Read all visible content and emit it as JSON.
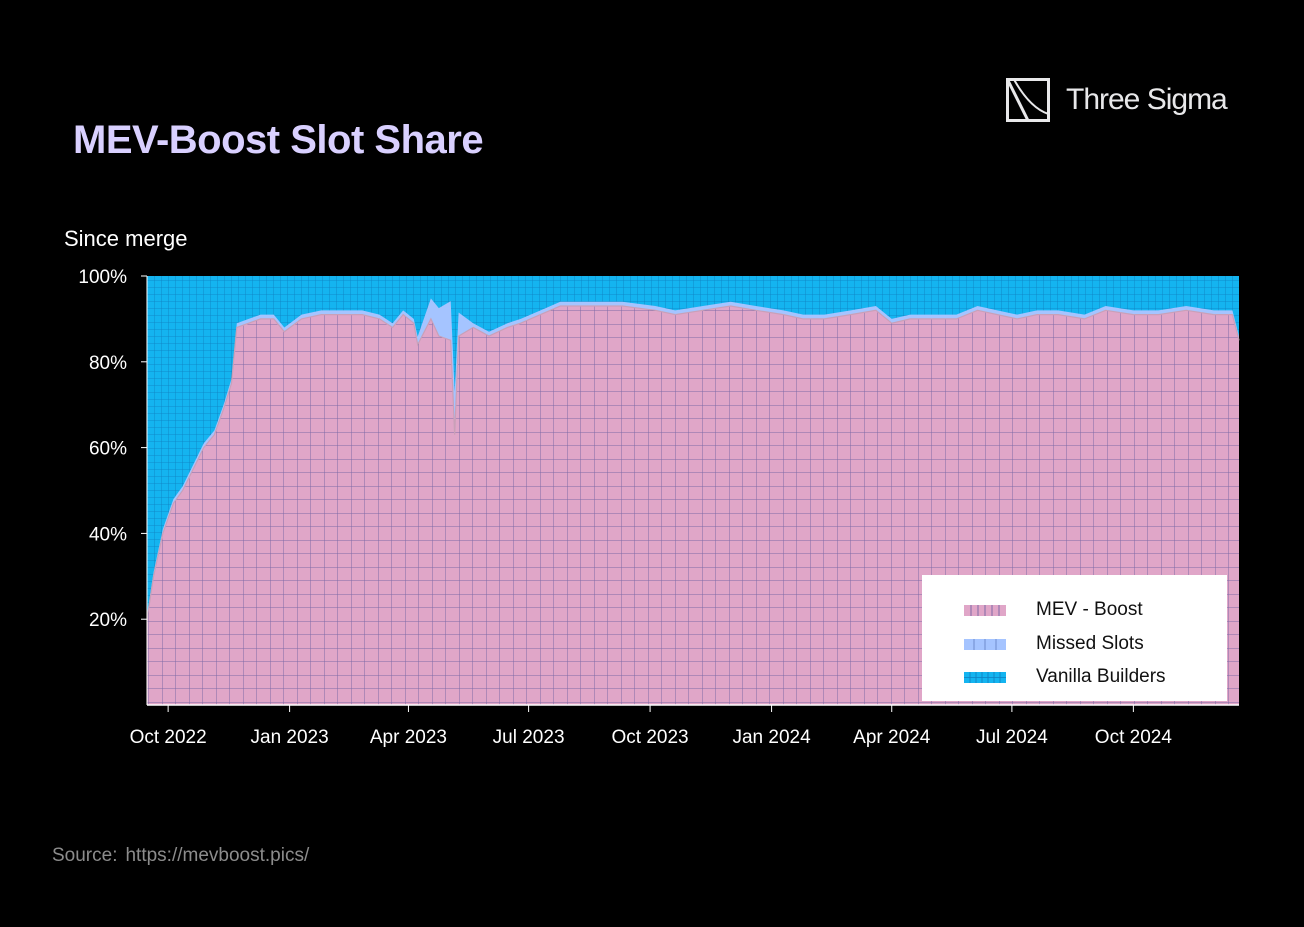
{
  "header": {
    "title": "MEV-Boost Slot Share",
    "brand": "Three Sigma",
    "subtitle": "Since merge"
  },
  "source": {
    "label": "Source:",
    "url": "https://mevboost.pics/"
  },
  "colors": {
    "mev_boost": "#e0a6c8",
    "mev_grid": "#7e6aa6",
    "missed_slots": "#a5c4ff",
    "vanilla_builders": "#14b4f0",
    "vanilla_grid": "#0f7fc0",
    "title": "#d9d0ff",
    "background": "#000000"
  },
  "legend": {
    "placement": "bottom-right",
    "items": [
      {
        "label": "MEV - Boost",
        "color": "#e0a6c8"
      },
      {
        "label": "Missed Slots",
        "color": "#a5c4ff"
      },
      {
        "label": "Vanilla Builders",
        "color": "#14b4f0"
      }
    ]
  },
  "chart_data": {
    "type": "area",
    "stacked": true,
    "normalized": true,
    "title": "MEV-Boost Slot Share",
    "xlabel": "",
    "ylabel": "",
    "x_ticks": [
      "Oct 2022",
      "Jan 2023",
      "Apr 2023",
      "Jul 2023",
      "Oct 2023",
      "Jan 2024",
      "Apr 2024",
      "Jul 2024",
      "Oct 2024"
    ],
    "y_ticks": [
      "20%",
      "40%",
      "60%",
      "80%",
      "100%"
    ],
    "ylim": [
      0,
      100
    ],
    "xlim": [
      "2022-09-15",
      "2024-12-20"
    ],
    "grid": true,
    "series": [
      {
        "name": "MEV - Boost",
        "color": "#e0a6c8",
        "points": [
          [
            "2022-09-15",
            20
          ],
          [
            "2022-09-20",
            30
          ],
          [
            "2022-09-27",
            40
          ],
          [
            "2022-10-05",
            47
          ],
          [
            "2022-10-12",
            50
          ],
          [
            "2022-10-20",
            55
          ],
          [
            "2022-10-28",
            60
          ],
          [
            "2022-11-05",
            63
          ],
          [
            "2022-11-12",
            69
          ],
          [
            "2022-11-18",
            75
          ],
          [
            "2022-11-22",
            88
          ],
          [
            "2022-12-01",
            89
          ],
          [
            "2022-12-10",
            90
          ],
          [
            "2022-12-20",
            90
          ],
          [
            "2022-12-28",
            87
          ],
          [
            "2023-01-10",
            90
          ],
          [
            "2023-01-25",
            91
          ],
          [
            "2023-02-10",
            91
          ],
          [
            "2023-02-25",
            91
          ],
          [
            "2023-03-10",
            90
          ],
          [
            "2023-03-20",
            88
          ],
          [
            "2023-03-28",
            91
          ],
          [
            "2023-04-05",
            89
          ],
          [
            "2023-04-08",
            84
          ],
          [
            "2023-04-13",
            87
          ],
          [
            "2023-04-18",
            90
          ],
          [
            "2023-04-24",
            86
          ],
          [
            "2023-05-03",
            85
          ],
          [
            "2023-05-06",
            63
          ],
          [
            "2023-05-09",
            86
          ],
          [
            "2023-05-20",
            88
          ],
          [
            "2023-06-01",
            86
          ],
          [
            "2023-06-15",
            88
          ],
          [
            "2023-06-25",
            89
          ],
          [
            "2023-07-10",
            91
          ],
          [
            "2023-07-25",
            93
          ],
          [
            "2023-08-15",
            93
          ],
          [
            "2023-09-10",
            93
          ],
          [
            "2023-10-05",
            92
          ],
          [
            "2023-10-20",
            91
          ],
          [
            "2023-11-10",
            92
          ],
          [
            "2023-12-01",
            93
          ],
          [
            "2023-12-20",
            92
          ],
          [
            "2024-01-10",
            91
          ],
          [
            "2024-01-25",
            90
          ],
          [
            "2024-02-10",
            90
          ],
          [
            "2024-03-01",
            91
          ],
          [
            "2024-03-20",
            92
          ],
          [
            "2024-04-01",
            89
          ],
          [
            "2024-04-15",
            90
          ],
          [
            "2024-05-01",
            90
          ],
          [
            "2024-05-20",
            90
          ],
          [
            "2024-06-05",
            92
          ],
          [
            "2024-06-20",
            91
          ],
          [
            "2024-07-05",
            90
          ],
          [
            "2024-07-20",
            91
          ],
          [
            "2024-08-05",
            91
          ],
          [
            "2024-08-25",
            90
          ],
          [
            "2024-09-10",
            92
          ],
          [
            "2024-10-01",
            91
          ],
          [
            "2024-10-20",
            91
          ],
          [
            "2024-11-10",
            92
          ],
          [
            "2024-12-01",
            91
          ],
          [
            "2024-12-15",
            91
          ],
          [
            "2024-12-20",
            85
          ]
        ]
      },
      {
        "name": "Missed Slots",
        "color": "#a5c4ff",
        "points": [
          [
            "2022-09-15",
            1
          ],
          [
            "2023-04-05",
            1
          ],
          [
            "2023-05-06",
            10
          ],
          [
            "2023-05-12",
            1
          ],
          [
            "2024-12-20",
            1
          ]
        ]
      },
      {
        "name": "Vanilla Builders",
        "color": "#14b4f0",
        "remainder_to": 100
      }
    ]
  }
}
